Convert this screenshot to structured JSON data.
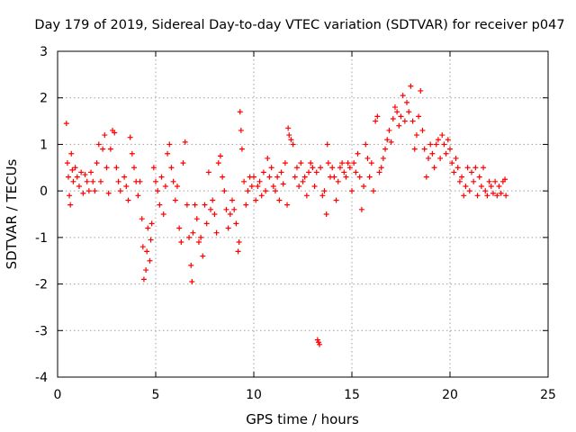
{
  "chart_data": {
    "type": "scatter",
    "title": "Day 179 of 2019, Sidereal Day-to-day VTEC variation (SDTVAR) for receiver p047",
    "xlabel": "GPS time / hours",
    "ylabel": "SDTVAR / TECUs",
    "xlim": [
      0,
      25
    ],
    "ylim": [
      -4,
      3
    ],
    "xticks": [
      "0",
      "5",
      "10",
      "15",
      "20",
      "25"
    ],
    "yticks": [
      "-4",
      "-3",
      "-2",
      "-1",
      "0",
      "1",
      "2",
      "3"
    ],
    "grid": true,
    "marker": "+",
    "marker_color": "#ff0000",
    "series": [
      {
        "name": "SDTVAR",
        "points": [
          [
            0.45,
            1.45
          ],
          [
            0.5,
            0.6
          ],
          [
            0.55,
            0.3
          ],
          [
            0.6,
            -0.1
          ],
          [
            0.65,
            -0.3
          ],
          [
            0.7,
            0.8
          ],
          [
            0.75,
            0.45
          ],
          [
            0.8,
            0.2
          ],
          [
            0.9,
            0.5
          ],
          [
            1.0,
            0.3
          ],
          [
            1.1,
            0.1
          ],
          [
            1.2,
            0.4
          ],
          [
            1.3,
            -0.05
          ],
          [
            1.4,
            0.35
          ],
          [
            1.5,
            0.2
          ],
          [
            1.6,
            0.0
          ],
          [
            1.7,
            0.4
          ],
          [
            1.8,
            0.2
          ],
          [
            1.9,
            0.0
          ],
          [
            2.0,
            0.6
          ],
          [
            2.1,
            1.0
          ],
          [
            2.2,
            0.2
          ],
          [
            2.3,
            0.9
          ],
          [
            2.4,
            1.2
          ],
          [
            2.5,
            0.5
          ],
          [
            2.6,
            -0.05
          ],
          [
            2.7,
            0.9
          ],
          [
            2.8,
            1.3
          ],
          [
            2.9,
            1.25
          ],
          [
            3.0,
            0.5
          ],
          [
            3.1,
            0.2
          ],
          [
            3.2,
            0.0
          ],
          [
            3.4,
            0.3
          ],
          [
            3.5,
            0.1
          ],
          [
            3.6,
            -0.2
          ],
          [
            3.7,
            1.15
          ],
          [
            3.8,
            0.8
          ],
          [
            3.9,
            0.5
          ],
          [
            4.0,
            0.2
          ],
          [
            4.1,
            -0.1
          ],
          [
            4.2,
            0.2
          ],
          [
            4.3,
            -0.6
          ],
          [
            4.35,
            -1.2
          ],
          [
            4.4,
            -1.9
          ],
          [
            4.5,
            -1.7
          ],
          [
            4.55,
            -1.3
          ],
          [
            4.6,
            -0.8
          ],
          [
            4.7,
            -1.5
          ],
          [
            4.75,
            -1.05
          ],
          [
            4.8,
            -0.7
          ],
          [
            4.9,
            0.5
          ],
          [
            5.0,
            0.2
          ],
          [
            5.1,
            0.0
          ],
          [
            5.2,
            -0.3
          ],
          [
            5.3,
            0.3
          ],
          [
            5.4,
            -0.5
          ],
          [
            5.5,
            0.1
          ],
          [
            5.6,
            0.8
          ],
          [
            5.7,
            1.0
          ],
          [
            5.8,
            0.5
          ],
          [
            5.9,
            0.2
          ],
          [
            6.0,
            -0.2
          ],
          [
            6.1,
            0.1
          ],
          [
            6.2,
            -0.8
          ],
          [
            6.3,
            -1.1
          ],
          [
            6.4,
            0.6
          ],
          [
            6.5,
            1.05
          ],
          [
            6.6,
            -0.3
          ],
          [
            6.7,
            -1.0
          ],
          [
            6.8,
            -1.6
          ],
          [
            6.85,
            -1.95
          ],
          [
            6.9,
            -0.9
          ],
          [
            7.0,
            -0.3
          ],
          [
            7.1,
            -0.6
          ],
          [
            7.2,
            -1.1
          ],
          [
            7.3,
            -1.0
          ],
          [
            7.4,
            -1.4
          ],
          [
            7.5,
            -0.3
          ],
          [
            7.6,
            -0.7
          ],
          [
            7.7,
            0.4
          ],
          [
            7.8,
            -0.4
          ],
          [
            7.9,
            -0.2
          ],
          [
            8.0,
            -0.5
          ],
          [
            8.1,
            -0.9
          ],
          [
            8.2,
            0.6
          ],
          [
            8.3,
            0.75
          ],
          [
            8.4,
            0.3
          ],
          [
            8.5,
            0.0
          ],
          [
            8.6,
            -0.4
          ],
          [
            8.7,
            -0.8
          ],
          [
            8.8,
            -0.5
          ],
          [
            8.9,
            -0.2
          ],
          [
            9.0,
            -0.4
          ],
          [
            9.1,
            -0.7
          ],
          [
            9.2,
            -1.3
          ],
          [
            9.25,
            -1.1
          ],
          [
            9.3,
            1.7
          ],
          [
            9.35,
            1.3
          ],
          [
            9.4,
            0.9
          ],
          [
            9.5,
            0.2
          ],
          [
            9.6,
            -0.3
          ],
          [
            9.7,
            0.0
          ],
          [
            9.8,
            0.3
          ],
          [
            9.9,
            0.1
          ],
          [
            10.0,
            0.3
          ],
          [
            10.1,
            -0.2
          ],
          [
            10.2,
            0.1
          ],
          [
            10.3,
            0.2
          ],
          [
            10.4,
            -0.1
          ],
          [
            10.5,
            0.4
          ],
          [
            10.6,
            0.0
          ],
          [
            10.7,
            0.7
          ],
          [
            10.8,
            0.3
          ],
          [
            10.9,
            0.5
          ],
          [
            11.0,
            0.1
          ],
          [
            11.1,
            0.0
          ],
          [
            11.2,
            0.3
          ],
          [
            11.3,
            -0.2
          ],
          [
            11.4,
            0.4
          ],
          [
            11.5,
            0.15
          ],
          [
            11.6,
            0.6
          ],
          [
            11.7,
            -0.3
          ],
          [
            11.75,
            1.35
          ],
          [
            11.8,
            1.2
          ],
          [
            11.9,
            1.1
          ],
          [
            12.0,
            1.0
          ],
          [
            12.1,
            0.3
          ],
          [
            12.2,
            0.5
          ],
          [
            12.3,
            0.1
          ],
          [
            12.4,
            0.6
          ],
          [
            12.5,
            0.2
          ],
          [
            12.6,
            0.3
          ],
          [
            12.7,
            -0.1
          ],
          [
            12.8,
            0.4
          ],
          [
            12.9,
            0.6
          ],
          [
            13.0,
            0.5
          ],
          [
            13.1,
            0.1
          ],
          [
            13.2,
            0.4
          ],
          [
            13.25,
            -3.2
          ],
          [
            13.3,
            -3.25
          ],
          [
            13.35,
            -3.3
          ],
          [
            13.4,
            0.5
          ],
          [
            13.5,
            -0.1
          ],
          [
            13.6,
            0.0
          ],
          [
            13.7,
            -0.5
          ],
          [
            13.75,
            1.0
          ],
          [
            13.8,
            0.6
          ],
          [
            13.9,
            0.3
          ],
          [
            14.0,
            0.5
          ],
          [
            14.1,
            0.3
          ],
          [
            14.2,
            -0.2
          ],
          [
            14.3,
            0.2
          ],
          [
            14.4,
            0.5
          ],
          [
            14.5,
            0.6
          ],
          [
            14.6,
            0.4
          ],
          [
            14.7,
            0.3
          ],
          [
            14.8,
            0.6
          ],
          [
            14.9,
            0.5
          ],
          [
            15.0,
            0.0
          ],
          [
            15.1,
            0.6
          ],
          [
            15.2,
            0.4
          ],
          [
            15.3,
            0.8
          ],
          [
            15.4,
            0.3
          ],
          [
            15.5,
            -0.4
          ],
          [
            15.6,
            0.1
          ],
          [
            15.7,
            1.0
          ],
          [
            15.8,
            0.7
          ],
          [
            15.9,
            0.3
          ],
          [
            16.0,
            0.6
          ],
          [
            16.1,
            0.0
          ],
          [
            16.2,
            1.5
          ],
          [
            16.3,
            1.6
          ],
          [
            16.4,
            0.4
          ],
          [
            16.5,
            0.5
          ],
          [
            16.6,
            0.7
          ],
          [
            16.7,
            0.9
          ],
          [
            16.8,
            1.1
          ],
          [
            16.9,
            1.3
          ],
          [
            17.0,
            1.05
          ],
          [
            17.1,
            1.55
          ],
          [
            17.2,
            1.8
          ],
          [
            17.3,
            1.7
          ],
          [
            17.4,
            1.4
          ],
          [
            17.5,
            1.6
          ],
          [
            17.6,
            2.05
          ],
          [
            17.7,
            1.5
          ],
          [
            17.8,
            1.9
          ],
          [
            17.9,
            1.7
          ],
          [
            18.0,
            2.25
          ],
          [
            18.1,
            1.5
          ],
          [
            18.2,
            0.9
          ],
          [
            18.3,
            1.2
          ],
          [
            18.4,
            1.6
          ],
          [
            18.5,
            2.15
          ],
          [
            18.6,
            1.3
          ],
          [
            18.7,
            0.9
          ],
          [
            18.8,
            0.3
          ],
          [
            18.9,
            0.7
          ],
          [
            19.0,
            1.0
          ],
          [
            19.1,
            0.8
          ],
          [
            19.2,
            0.5
          ],
          [
            19.3,
            1.0
          ],
          [
            19.4,
            1.1
          ],
          [
            19.5,
            0.7
          ],
          [
            19.6,
            1.2
          ],
          [
            19.7,
            1.0
          ],
          [
            19.8,
            0.8
          ],
          [
            19.9,
            1.1
          ],
          [
            20.0,
            0.9
          ],
          [
            20.1,
            0.6
          ],
          [
            20.2,
            0.4
          ],
          [
            20.3,
            0.7
          ],
          [
            20.4,
            0.5
          ],
          [
            20.5,
            0.2
          ],
          [
            20.6,
            0.3
          ],
          [
            20.7,
            -0.1
          ],
          [
            20.8,
            0.1
          ],
          [
            20.9,
            0.5
          ],
          [
            21.0,
            0.0
          ],
          [
            21.1,
            0.4
          ],
          [
            21.2,
            0.2
          ],
          [
            21.3,
            0.5
          ],
          [
            21.4,
            -0.1
          ],
          [
            21.5,
            0.3
          ],
          [
            21.6,
            0.1
          ],
          [
            21.7,
            0.5
          ],
          [
            21.8,
            0.0
          ],
          [
            21.9,
            -0.1
          ],
          [
            22.0,
            0.2
          ],
          [
            22.1,
            0.1
          ],
          [
            22.2,
            -0.05
          ],
          [
            22.3,
            0.2
          ],
          [
            22.4,
            -0.1
          ],
          [
            22.5,
            0.1
          ],
          [
            22.6,
            -0.05
          ],
          [
            22.7,
            0.2
          ],
          [
            22.8,
            0.25
          ],
          [
            22.85,
            -0.1
          ]
        ]
      }
    ]
  }
}
